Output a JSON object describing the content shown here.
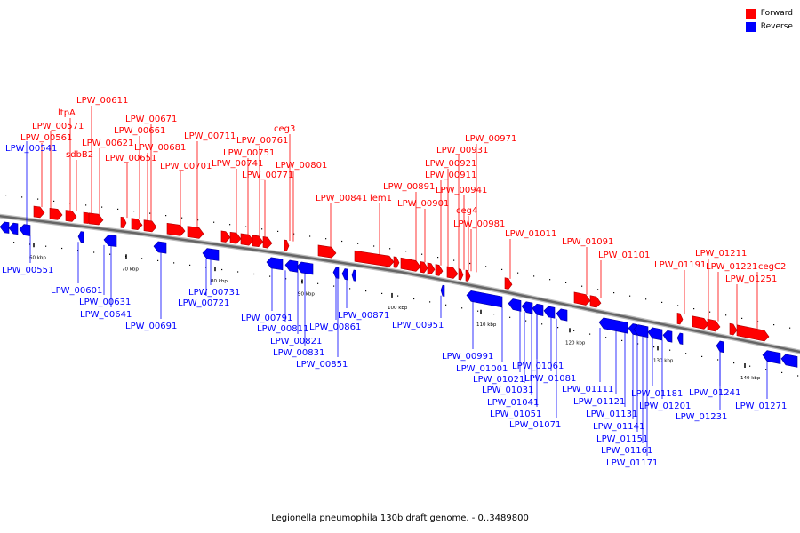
{
  "caption": "Legionella pneumophila 130b draft genome. - 0..3489800",
  "colors": {
    "forward": "#ff0000",
    "reverse": "#0000ff",
    "backbone": "#666666",
    "tick": "#000000"
  },
  "legend": {
    "forward_label": "Forward",
    "reverse_label": "Reverse"
  },
  "scale": {
    "unit_suffix": " kbp",
    "ticks": [
      60,
      70,
      80,
      90,
      100,
      110,
      120,
      130,
      140
    ]
  },
  "forward_genes": [
    "LPW_00571",
    "LPW_00561",
    "LPW_00611",
    "ltpA",
    "LPW_00621",
    "sdbB2",
    "LPW_00671",
    "LPW_00661",
    "LPW_00681",
    "LPW_00651",
    "LPW_00711",
    "LPW_00701",
    "LPW_00761",
    "LPW_00751",
    "LPW_00741",
    "ceg3",
    "LPW_00771",
    "LPW_00801",
    "LPW_00841",
    "lem1",
    "LPW_00971",
    "LPW_00931",
    "LPW_00921",
    "LPW_00911",
    "LPW_00891",
    "LPW_00941",
    "LPW_00901",
    "ceg4",
    "LPW_00981",
    "LPW_01011",
    "LPW_01091",
    "LPW_01101",
    "LPW_01211",
    "LPW_01191",
    "LPW_01221",
    "cegC2",
    "LPW_01251"
  ],
  "reverse_genes": [
    "LPW_00541",
    "LPW_00551",
    "LPW_00601",
    "LPW_00631",
    "LPW_00641",
    "LPW_00691",
    "LPW_00731",
    "LPW_00721",
    "LPW_00791",
    "LPW_00871",
    "LPW_00811",
    "LPW_00861",
    "LPW_00821",
    "LPW_00831",
    "LPW_00851",
    "LPW_00951",
    "LPW_00991",
    "LPW_01001",
    "LPW_01061",
    "LPW_01021",
    "LPW_01081",
    "LPW_01031",
    "LPW_01041",
    "LPW_01051",
    "LPW_01071",
    "LPW_01111",
    "LPW_01181",
    "LPW_01241",
    "LPW_01121",
    "LPW_01201",
    "LPW_01271",
    "LPW_01131",
    "LPW_01231",
    "LPW_01141",
    "LPW_01151",
    "LPW_01161",
    "LPW_01171"
  ]
}
